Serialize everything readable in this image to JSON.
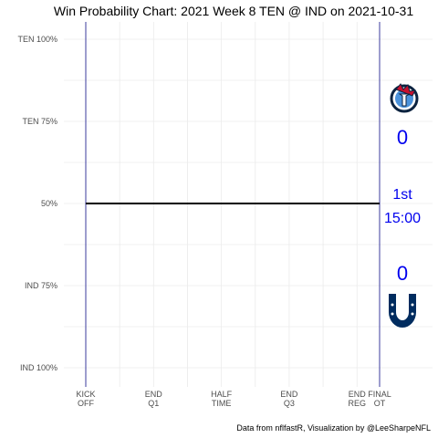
{
  "chart_data": {
    "type": "line",
    "title": "Win Probability Chart: 2021 Week 8 TEN @ IND on 2021-10-31",
    "caption": "Data from nflfastR, Visualization by @LeeSharpeNFL",
    "y_ticks": [
      "TEN 100%",
      "TEN 75%",
      "50%",
      "IND 75%",
      "IND 100%"
    ],
    "y_tick_values": [
      1.0,
      0.75,
      0.5,
      0.25,
      0.0
    ],
    "x_ticks": [
      [
        "KICK",
        "OFF"
      ],
      [
        "END",
        "Q1"
      ],
      [
        "HALF",
        "TIME"
      ],
      [
        "END",
        "Q3"
      ],
      [
        "END",
        "REG"
      ],
      [
        "FINAL",
        "OT"
      ]
    ],
    "x_tick_values": [
      0,
      15,
      30,
      45,
      60,
      65
    ],
    "xlim": [
      0,
      65
    ],
    "ylim": [
      0,
      1
    ],
    "grid": true,
    "series": [
      {
        "x": [
          0,
          65
        ],
        "y": [
          0.5,
          0.5
        ]
      }
    ],
    "reference_lines_x": [
      0,
      65
    ],
    "away_team": {
      "abbr": "TEN",
      "score": "0",
      "logo": "titans-logo"
    },
    "home_team": {
      "abbr": "IND",
      "score": "0",
      "logo": "colts-horseshoe-logo"
    },
    "game_state": {
      "quarter": "1st",
      "clock": "15:00"
    },
    "colors": {
      "line": "#000000",
      "ref_line": "#3b3b9e",
      "score": "#0000ee",
      "grid": "#ebebeb"
    }
  }
}
